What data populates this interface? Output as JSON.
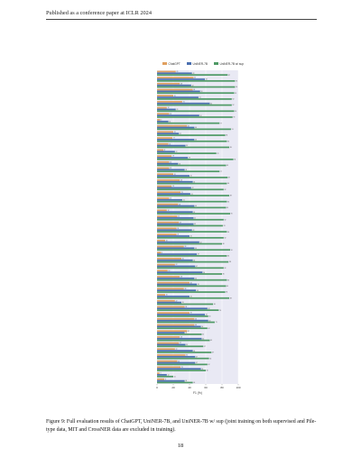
{
  "header": {
    "venue": "Published as a conference paper at ICLR 2024"
  },
  "caption": {
    "label": "Figure 9:",
    "text": "Full evaluation results of ChatGPT, UniNER-7B, and UniNER-7B w/ sup (joint training on both supervised and Pile-type data, MIT and CrossNER data are excluded in training)."
  },
  "page_number": "18",
  "colors": {
    "chatgpt": "#e0a060",
    "uniner": "#4a6fb0",
    "uniner_sup": "#4f9a66",
    "background": "#e9e9f4"
  },
  "chart_data": {
    "type": "bar",
    "orientation": "horizontal",
    "xlabel": "F1 (%)",
    "xlim": [
      0,
      100
    ],
    "xticks": [
      "0",
      "20",
      "40",
      "60",
      "80",
      "100"
    ],
    "grid": true,
    "legend_position": "top",
    "categories": [
      "",
      "",
      "",
      "",
      "",
      "",
      "",
      "",
      "",
      "",
      "",
      "",
      "",
      "",
      "",
      "",
      "",
      "",
      "",
      "",
      "",
      "",
      "",
      "",
      "",
      "",
      "",
      "",
      "",
      "",
      "",
      "",
      "",
      "",
      "",
      "",
      "",
      "",
      "",
      "",
      "",
      "",
      "",
      "",
      "",
      "",
      "",
      "",
      "",
      "",
      "",
      ""
    ],
    "series": [
      {
        "name": "ChatGPT",
        "values": [
          23,
          45,
          28,
          44,
          20,
          31,
          12,
          15,
          4,
          37,
          20,
          19,
          14,
          8,
          18,
          15,
          15,
          20,
          28,
          18,
          29,
          15,
          26,
          12,
          25,
          27,
          24,
          24,
          10,
          33,
          5,
          30,
          22,
          13,
          28,
          40,
          33,
          10,
          22,
          34,
          40,
          46,
          46,
          37,
          28,
          27,
          22,
          35,
          25,
          29,
          3,
          9
        ]
      },
      {
        "name": "UniNER-7B",
        "values": [
          43,
          59,
          42,
          53,
          51,
          65,
          23,
          52,
          14,
          46,
          27,
          46,
          35,
          22,
          38,
          26,
          34,
          40,
          44,
          42,
          41,
          31,
          46,
          44,
          45,
          45,
          43,
          40,
          52,
          46,
          49,
          44,
          47,
          56,
          46,
          49,
          48,
          40,
          30,
          62,
          59,
          63,
          54,
          34,
          55,
          35,
          44,
          47,
          47,
          54,
          12,
          34
        ]
      },
      {
        "name": "UniNER-7B w/ sup",
        "values": [
          87,
          96,
          96,
          95,
          92,
          92,
          95,
          93,
          77,
          91,
          84,
          86,
          89,
          73,
          94,
          85,
          77,
          87,
          86,
          82,
          89,
          86,
          85,
          90,
          82,
          81,
          86,
          82,
          80,
          90,
          86,
          88,
          82,
          80,
          86,
          85,
          84,
          89,
          69,
          76,
          63,
          71,
          62,
          55,
          65,
          57,
          67,
          64,
          62,
          60,
          20,
          44
        ]
      }
    ]
  }
}
